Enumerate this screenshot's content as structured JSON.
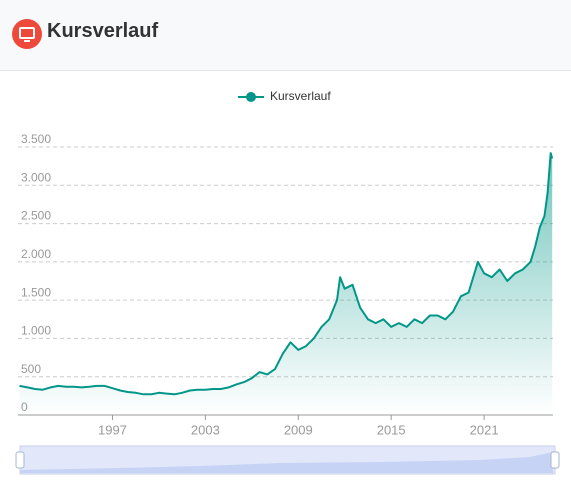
{
  "header": {
    "title": "Kursverlauf"
  },
  "chart_data": {
    "type": "line",
    "x": [
      1991,
      1991.5,
      1992,
      1992.5,
      1993,
      1993.5,
      1994,
      1994.5,
      1995,
      1995.5,
      1996,
      1996.5,
      1997,
      1997.5,
      1998,
      1998.5,
      1999,
      1999.5,
      2000,
      2000.5,
      2001,
      2001.5,
      2002,
      2002.5,
      2003,
      2003.5,
      2004,
      2004.5,
      2005,
      2005.5,
      2006,
      2006.5,
      2007,
      2007.5,
      2008,
      2008.5,
      2009,
      2009.5,
      2010,
      2010.5,
      2011,
      2011.5,
      2011.7,
      2012,
      2012.5,
      2013,
      2013.5,
      2014,
      2014.5,
      2015,
      2015.5,
      2016,
      2016.5,
      2017,
      2017.5,
      2018,
      2018.5,
      2019,
      2019.5,
      2020,
      2020.6,
      2021,
      2021.5,
      2022,
      2022.5,
      2023,
      2023.5,
      2024,
      2024.3,
      2024.6,
      2024.9,
      2025.1,
      2025.3,
      2025.4
    ],
    "series": [
      {
        "name": "Kursverlauf",
        "color": "#009688",
        "values": [
          380,
          360,
          340,
          330,
          360,
          380,
          370,
          370,
          360,
          370,
          380,
          380,
          350,
          320,
          300,
          290,
          270,
          270,
          290,
          280,
          270,
          290,
          320,
          330,
          330,
          340,
          340,
          360,
          400,
          430,
          480,
          560,
          530,
          600,
          800,
          950,
          850,
          900,
          1000,
          1150,
          1250,
          1500,
          1800,
          1650,
          1700,
          1400,
          1250,
          1200,
          1250,
          1150,
          1200,
          1150,
          1250,
          1200,
          1300,
          1300,
          1250,
          1350,
          1550,
          1600,
          2000,
          1850,
          1800,
          1900,
          1750,
          1850,
          1900,
          2000,
          2200,
          2450,
          2600,
          2900,
          3420,
          3350
        ]
      }
    ],
    "xlim": [
      1990.9,
      2025.45
    ],
    "xticks": [
      1997,
      2003,
      2009,
      2015,
      2021
    ],
    "ylim": [
      0,
      3500
    ],
    "yticks": [
      0,
      500,
      {
        "value": 1000,
        "label": "1.000"
      },
      {
        "value": 1500,
        "label": "1.500"
      },
      {
        "value": 2000,
        "label": "2.000"
      },
      {
        "value": 2500,
        "label": "2.500"
      },
      {
        "value": 3000,
        "label": "3.000"
      },
      {
        "value": 3500,
        "label": "3.500"
      }
    ],
    "grid": true
  }
}
